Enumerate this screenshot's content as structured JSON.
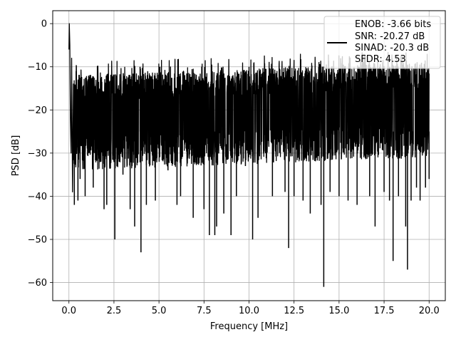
{
  "chart_data": {
    "type": "line",
    "title": "",
    "xlabel": "Frequency [MHz]",
    "ylabel": "PSD [dB]",
    "xlim": [
      -0.9,
      20.9
    ],
    "ylim": [
      -64.2,
      3.0
    ],
    "xticks": [
      0.0,
      2.5,
      5.0,
      7.5,
      10.0,
      12.5,
      15.0,
      17.5,
      20.0
    ],
    "xtick_labels": [
      "0.0",
      "2.5",
      "5.0",
      "7.5",
      "10.0",
      "12.5",
      "15.0",
      "17.5",
      "20.0"
    ],
    "yticks": [
      0,
      -10,
      -20,
      -30,
      -40,
      -50,
      -60
    ],
    "ytick_labels": [
      "0",
      "−10",
      "−20",
      "−30",
      "−40",
      "−50",
      "−60"
    ],
    "grid": true,
    "legend_position": "top-right",
    "series": [
      {
        "name": "ENOB: -3.66 bits",
        "color": "#000000",
        "noise_floor_center_db": -22,
        "noise_band_db": [
          -34,
          -12
        ],
        "x": [
          0.0,
          0.02,
          0.05,
          0.08,
          0.12,
          0.15,
          0.2,
          0.25,
          0.3,
          0.4,
          0.5,
          0.62,
          0.9,
          1.35,
          1.95,
          2.1,
          2.55,
          3.0,
          3.4,
          3.55,
          3.65,
          3.95,
          4.0,
          4.3,
          4.8,
          5.05,
          5.5,
          6.0,
          6.2,
          6.45,
          6.9,
          7.5,
          7.8,
          8.0,
          8.1,
          8.2,
          8.6,
          9.0,
          9.3,
          9.8,
          10.0,
          10.2,
          10.5,
          11.3,
          12.0,
          12.2,
          12.5,
          13.0,
          13.4,
          14.0,
          14.15,
          14.5,
          15.0,
          15.5,
          16.0,
          16.7,
          17.0,
          17.5,
          17.8,
          18.0,
          18.3,
          18.7,
          18.8,
          19.0,
          19.3,
          19.5,
          19.8,
          20.0
        ],
        "y": [
          -6,
          0,
          -5,
          -22,
          -30,
          -8,
          -39,
          -14,
          -42,
          -11,
          -41,
          -36,
          -40,
          -38,
          -43,
          -42,
          -50,
          -35,
          -43,
          -13,
          -47,
          -10,
          -53,
          -42,
          -41,
          -10,
          -34,
          -42,
          -40,
          -13,
          -45,
          -43,
          -49,
          -14,
          -49,
          -47,
          -44,
          -49,
          -40,
          -33,
          -10,
          -50,
          -45,
          -40,
          -39,
          -52,
          -40,
          -41,
          -44,
          -42,
          -61,
          -39,
          -40,
          -41,
          -42,
          -40,
          -47,
          -39,
          -41,
          -55,
          -40,
          -47,
          -57,
          -41,
          -38,
          -41,
          -38,
          -36
        ]
      }
    ],
    "legend_entries": [
      "ENOB: -3.66 bits",
      "SNR: -20.27 dB",
      "SINAD: -20.3 dB",
      "SFDR: 4.53"
    ]
  }
}
